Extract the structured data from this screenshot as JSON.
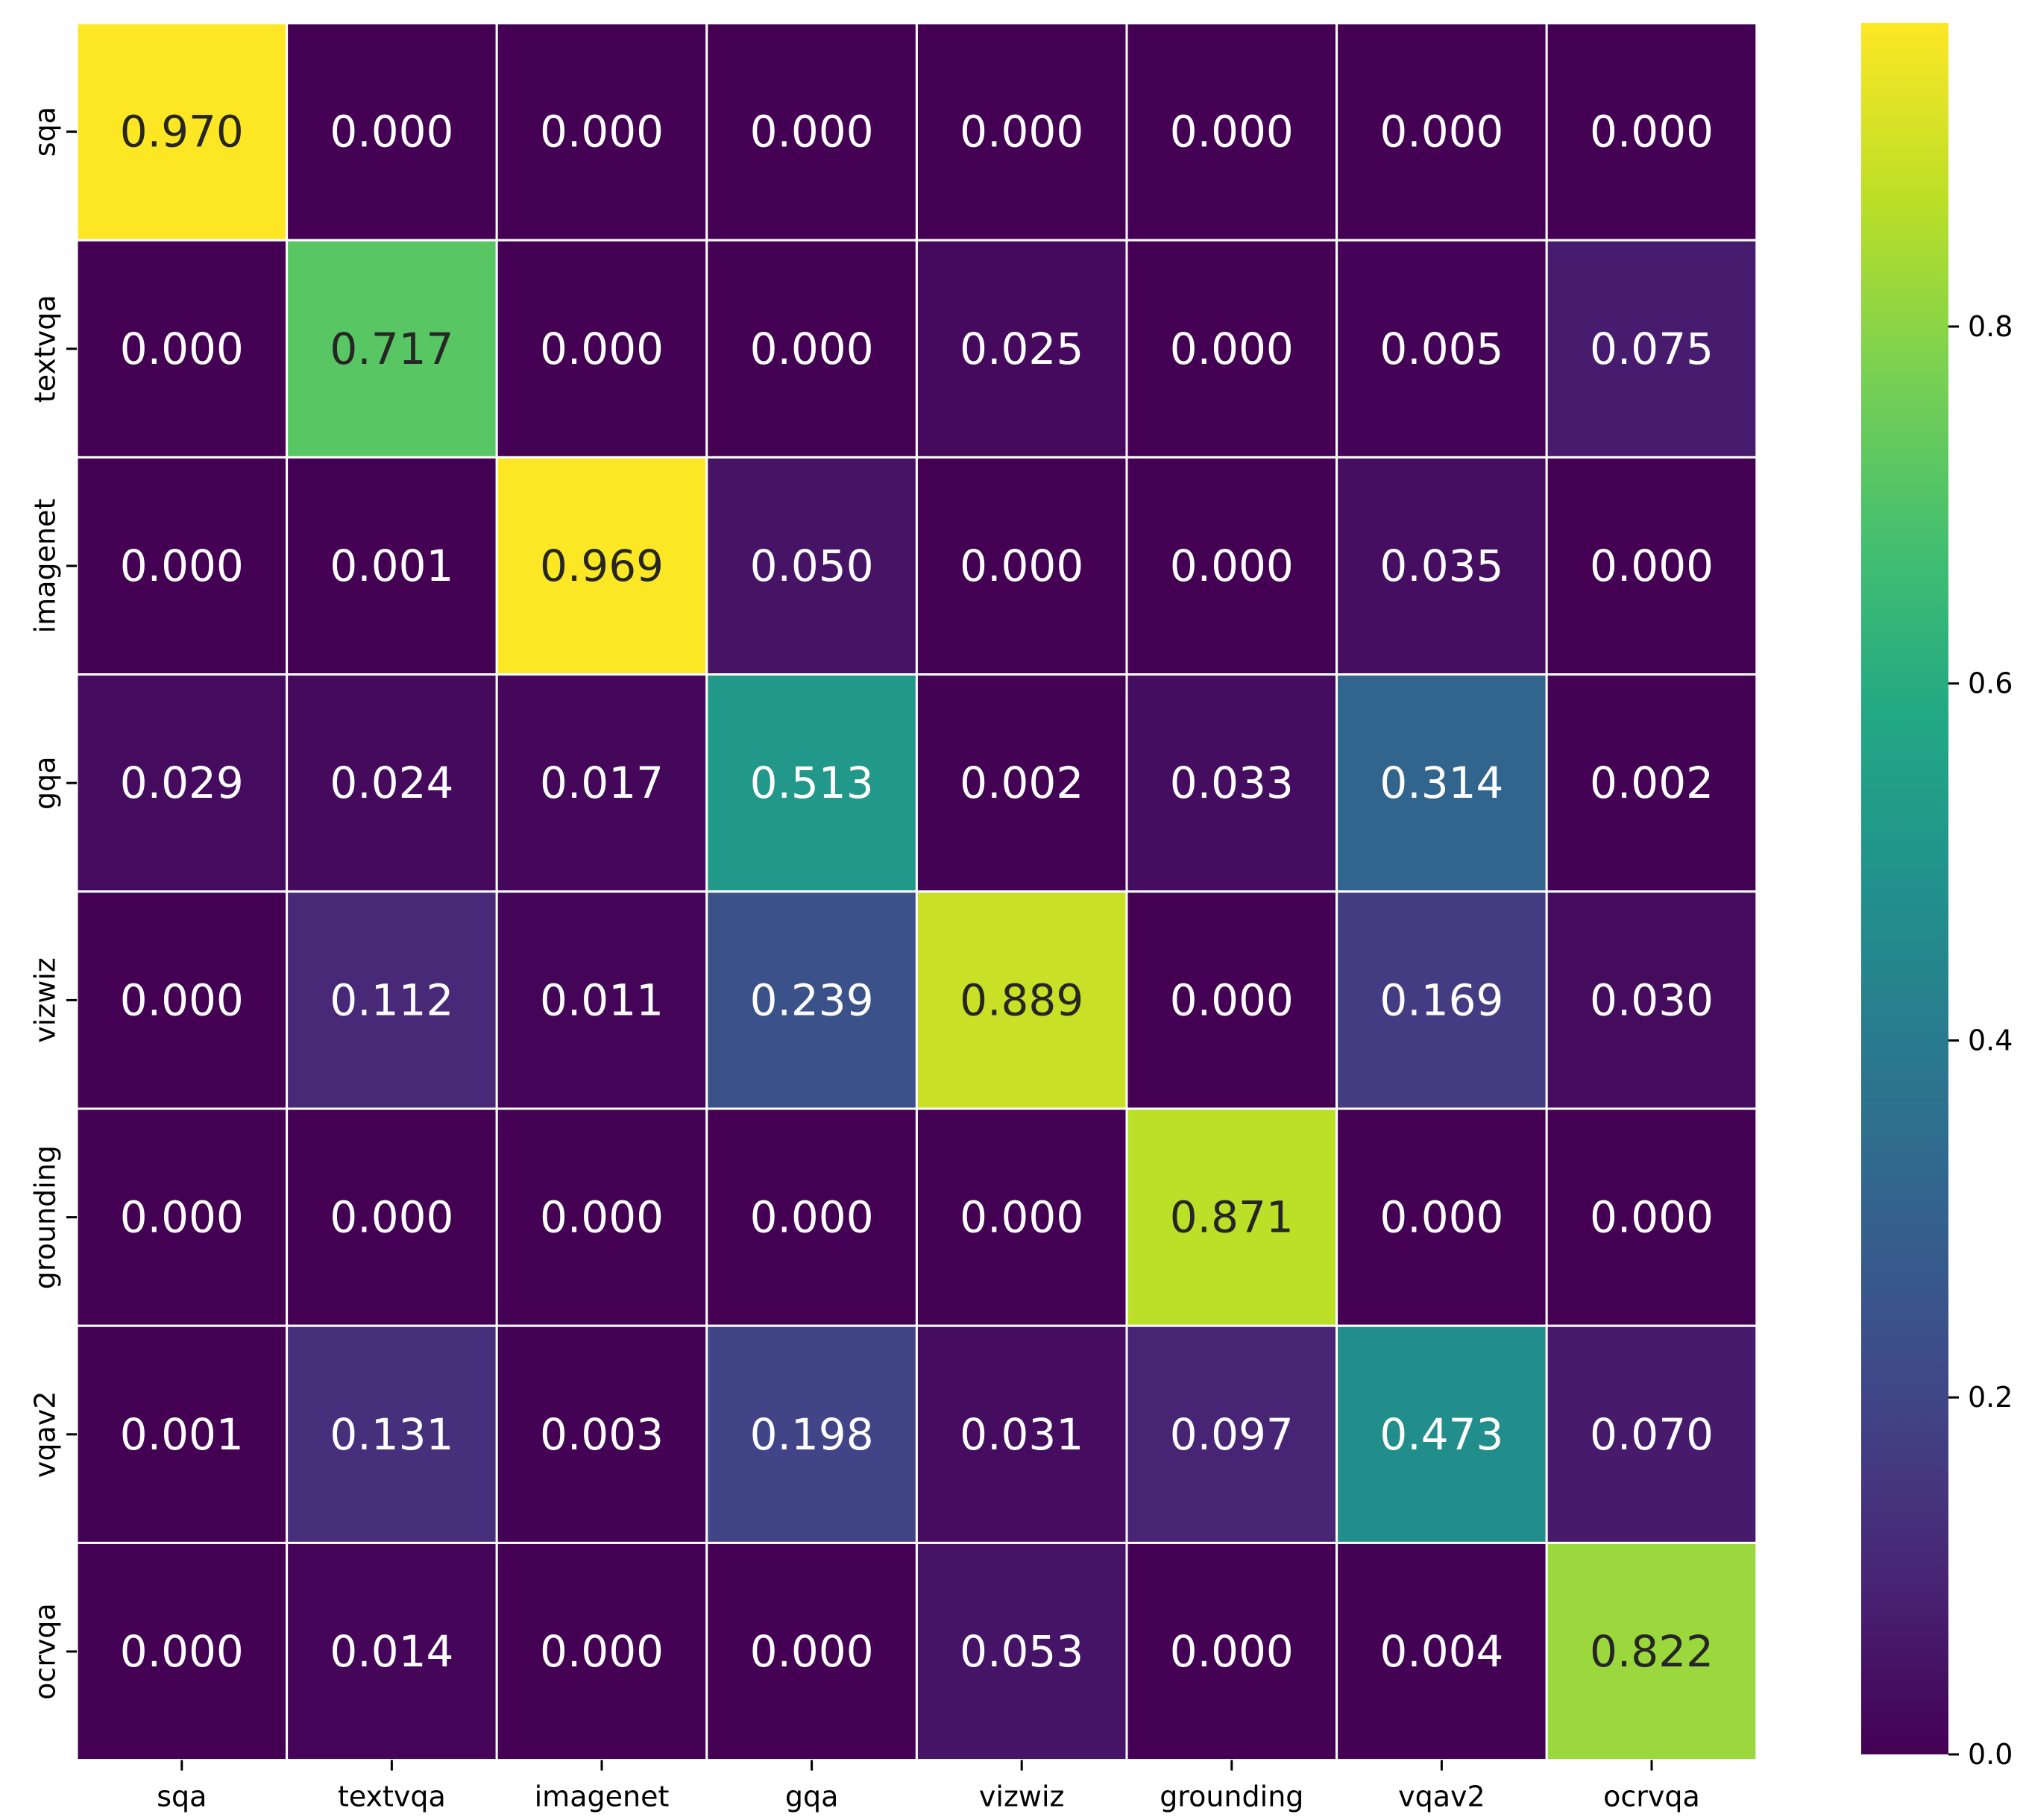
{
  "chart_data": {
    "type": "heatmap",
    "title": "",
    "xlabel": "",
    "ylabel": "",
    "rows": [
      "sqa",
      "textvqa",
      "imagenet",
      "gqa",
      "vizwiz",
      "grounding",
      "vqav2",
      "ocrvqa"
    ],
    "columns": [
      "sqa",
      "textvqa",
      "imagenet",
      "gqa",
      "vizwiz",
      "grounding",
      "vqav2",
      "ocrvqa"
    ],
    "values": [
      [
        0.97,
        0.0,
        0.0,
        0.0,
        0.0,
        0.0,
        0.0,
        0.0
      ],
      [
        0.0,
        0.717,
        0.0,
        0.0,
        0.025,
        0.0,
        0.005,
        0.075
      ],
      [
        0.0,
        0.001,
        0.969,
        0.05,
        0.0,
        0.0,
        0.035,
        0.0
      ],
      [
        0.029,
        0.024,
        0.017,
        0.513,
        0.002,
        0.033,
        0.314,
        0.002
      ],
      [
        0.0,
        0.112,
        0.011,
        0.239,
        0.889,
        0.0,
        0.169,
        0.03
      ],
      [
        0.0,
        0.0,
        0.0,
        0.0,
        0.0,
        0.871,
        0.0,
        0.0
      ],
      [
        0.001,
        0.131,
        0.003,
        0.198,
        0.031,
        0.097,
        0.473,
        0.07
      ],
      [
        0.0,
        0.014,
        0.0,
        0.0,
        0.053,
        0.0,
        0.004,
        0.822
      ]
    ],
    "colormap": "viridis",
    "vmin": 0.0,
    "vmax": 0.97,
    "colorbar": {
      "position": "right",
      "ticks": [
        0.0,
        0.2,
        0.4,
        0.6,
        0.8
      ],
      "tick_labels": [
        "0.0",
        "0.2",
        "0.4",
        "0.6",
        "0.8"
      ]
    },
    "cell_border_color": "#ffffff",
    "annotation_colors": {
      "dark_text": "#262626",
      "light_text": "#ffffff"
    }
  }
}
